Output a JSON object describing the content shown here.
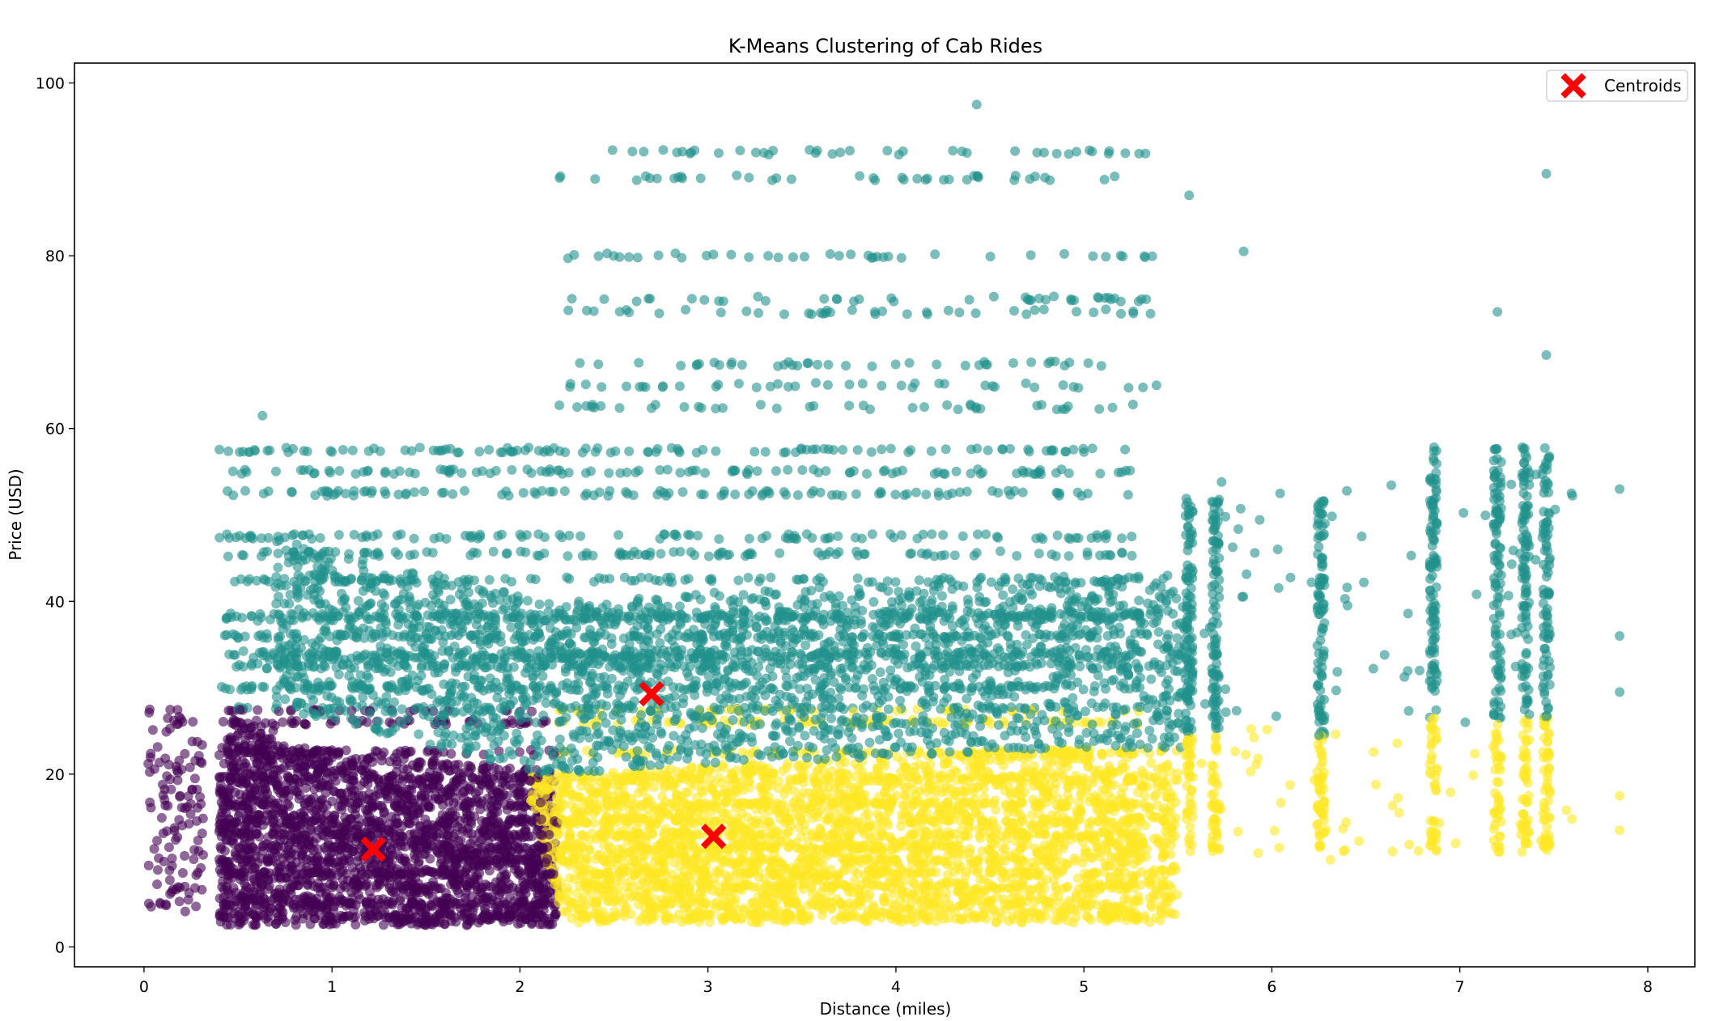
{
  "chart_data": {
    "type": "scatter",
    "title": "K-Means Clustering of Cab Rides",
    "xlabel": "Distance (miles)",
    "ylabel": "Price (USD)",
    "xlim": [
      -0.37,
      8.25
    ],
    "ylim": [
      -2.3,
      102.3
    ],
    "xticks": [
      0,
      1,
      2,
      3,
      4,
      5,
      6,
      7,
      8
    ],
    "yticks": [
      0,
      20,
      40,
      60,
      80,
      100
    ],
    "grid": false,
    "legend": {
      "position": "top-right",
      "entries": [
        "Centroids"
      ]
    },
    "colors": {
      "cluster_0": "#440154",
      "cluster_1": "#21918c",
      "cluster_2": "#fde725",
      "centroid": "#ff0000"
    },
    "point_opacity": 0.6,
    "clusters": [
      {
        "id": 0,
        "description": "short distance, low price",
        "region": {
          "x_min": 0.02,
          "x_max": 2.2,
          "y_min": 2.5,
          "y_max": 27.5
        }
      },
      {
        "id": 1,
        "description": "high price",
        "region": {
          "x_min": 0.3,
          "x_max": 7.85,
          "y_min": 20,
          "y_max": 97.5
        }
      },
      {
        "id": 2,
        "description": "longer distance, low price",
        "region": {
          "x_min": 2.05,
          "x_max": 7.85,
          "y_min": 2.5,
          "y_max": 27
        }
      }
    ],
    "price_levels": [
      3.5,
      5,
      7,
      8.5,
      10,
      11.5,
      13,
      14.5,
      16.5,
      19.5,
      22.5,
      26,
      27.5,
      30,
      32.5,
      33.5,
      34,
      36,
      38,
      38.5,
      42.5,
      45.5,
      47.5,
      52.5,
      55,
      57.5,
      62.5,
      65,
      67.5,
      73.5,
      75,
      80,
      89,
      92
    ],
    "vertical_columns_x": [
      5.56,
      5.7,
      6.26,
      6.86,
      7.2,
      7.35,
      7.46
    ],
    "outliers": [
      {
        "x": 4.43,
        "y": 97.5
      },
      {
        "x": 7.46,
        "y": 89.5
      },
      {
        "x": 5.56,
        "y": 87
      },
      {
        "x": 5.85,
        "y": 80.5
      },
      {
        "x": 7.2,
        "y": 73.5
      },
      {
        "x": 7.46,
        "y": 68.5
      },
      {
        "x": 7.85,
        "y": 53
      },
      {
        "x": 7.85,
        "y": 36
      },
      {
        "x": 7.85,
        "y": 29.5
      },
      {
        "x": 7.85,
        "y": 17.5
      },
      {
        "x": 7.85,
        "y": 13.5
      },
      {
        "x": 0.63,
        "y": 61.5
      },
      {
        "x": 5.7,
        "y": 49.5
      }
    ],
    "centroids": [
      {
        "x": 1.22,
        "y": 11.3
      },
      {
        "x": 2.7,
        "y": 29.3
      },
      {
        "x": 3.03,
        "y": 12.8
      }
    ]
  }
}
